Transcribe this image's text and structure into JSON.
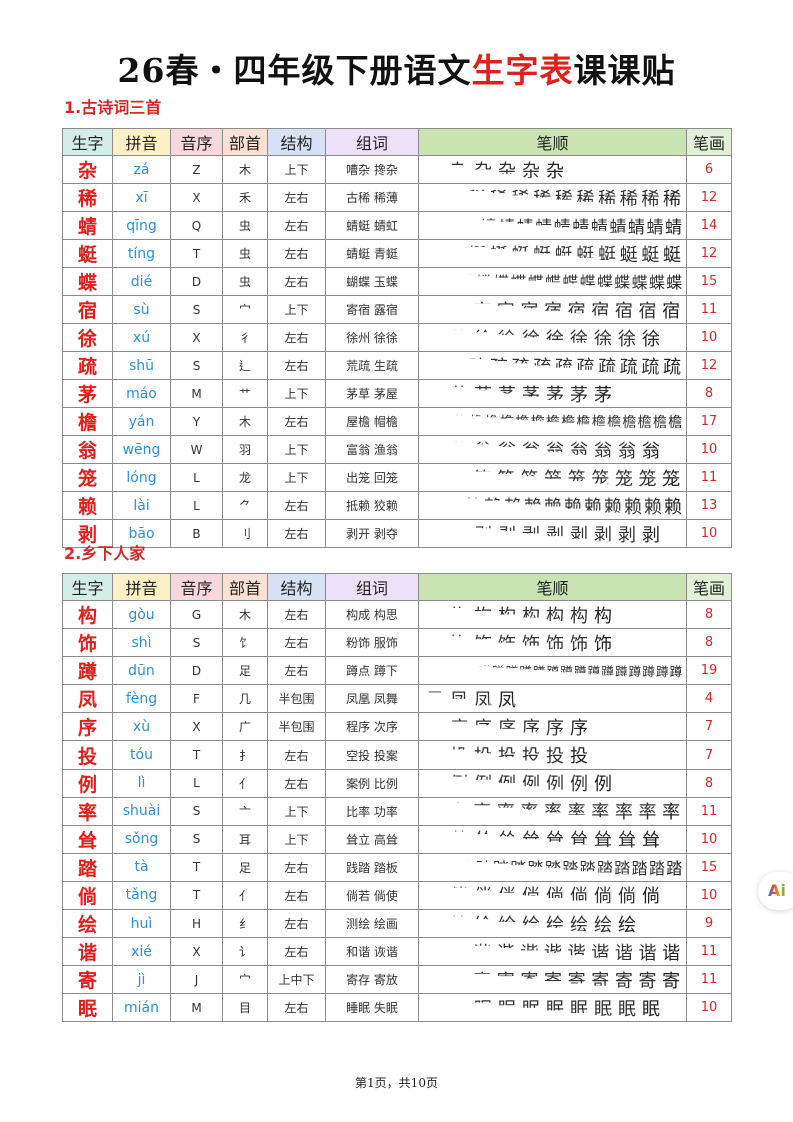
{
  "title": {
    "part1": "26春・四年级下册语文",
    "part2": "生字表",
    "part3": "课课贴"
  },
  "headers": [
    "生字",
    "拼音",
    "音序",
    "部首",
    "结构",
    "组词",
    "笔顺",
    "笔画"
  ],
  "header_colors": [
    "#d3eee8",
    "#fdf0c6",
    "#f9d7df",
    "#fbe1d4",
    "#d7e1f6",
    "#ede1f8",
    "#c9e3b3",
    "#e1f0d6"
  ],
  "accent_red": "#e0201b",
  "pinyin_blue": "#2f8fdc",
  "sections": [
    {
      "label": "1.古诗词三首",
      "rows": [
        {
          "char": "杂",
          "pinyin": "zá",
          "initial": "Z",
          "radical": "木",
          "structure": "上下",
          "words": "嘈杂  搀杂",
          "strokes": 6
        },
        {
          "char": "稀",
          "pinyin": "xī",
          "initial": "X",
          "radical": "禾",
          "structure": "左右",
          "words": "古稀  稀薄",
          "strokes": 12
        },
        {
          "char": "蜻",
          "pinyin": "qīng",
          "initial": "Q",
          "radical": "虫",
          "structure": "左右",
          "words": "蜻蜓  蜻虹",
          "strokes": 14
        },
        {
          "char": "蜓",
          "pinyin": "tíng",
          "initial": "T",
          "radical": "虫",
          "structure": "左右",
          "words": "蜻蜓  青蜓",
          "strokes": 12
        },
        {
          "char": "蝶",
          "pinyin": "dié",
          "initial": "D",
          "radical": "虫",
          "structure": "左右",
          "words": "蝴蝶  玉蝶",
          "strokes": 15
        },
        {
          "char": "宿",
          "pinyin": "sù",
          "initial": "S",
          "radical": "宀",
          "structure": "上下",
          "words": "寄宿  露宿",
          "strokes": 11
        },
        {
          "char": "徐",
          "pinyin": "xú",
          "initial": "X",
          "radical": "彳",
          "structure": "左右",
          "words": "徐州  徐徐",
          "strokes": 10
        },
        {
          "char": "疏",
          "pinyin": "shū",
          "initial": "S",
          "radical": "⻎",
          "structure": "左右",
          "words": "荒疏  生疏",
          "strokes": 12
        },
        {
          "char": "茅",
          "pinyin": "máo",
          "initial": "M",
          "radical": "艹",
          "structure": "上下",
          "words": "茅草  茅屋",
          "strokes": 8
        },
        {
          "char": "檐",
          "pinyin": "yán",
          "initial": "Y",
          "radical": "木",
          "structure": "左右",
          "words": "屋檐  帽檐",
          "strokes": 17
        },
        {
          "char": "翁",
          "pinyin": "wēng",
          "initial": "W",
          "radical": "羽",
          "structure": "上下",
          "words": "富翁  渔翁",
          "strokes": 10
        },
        {
          "char": "笼",
          "pinyin": "lóng",
          "initial": "L",
          "radical": "龙",
          "structure": "上下",
          "words": "出笼  回笼",
          "strokes": 11
        },
        {
          "char": "赖",
          "pinyin": "lài",
          "initial": "L",
          "radical": "⺈",
          "structure": "左右",
          "words": "抵赖  狡赖",
          "strokes": 13
        },
        {
          "char": "剥",
          "pinyin": "bāo",
          "initial": "B",
          "radical": "刂",
          "structure": "左右",
          "words": "剥开  剥夺",
          "strokes": 10
        }
      ]
    },
    {
      "label": "2.乡下人家",
      "rows": [
        {
          "char": "构",
          "pinyin": "gòu",
          "initial": "G",
          "radical": "木",
          "structure": "左右",
          "words": "构成  构思",
          "strokes": 8
        },
        {
          "char": "饰",
          "pinyin": "shì",
          "initial": "S",
          "radical": "饣",
          "structure": "左右",
          "words": "粉饰  服饰",
          "strokes": 8
        },
        {
          "char": "蹲",
          "pinyin": "dūn",
          "initial": "D",
          "radical": "足",
          "structure": "左右",
          "words": "蹲点  蹲下",
          "strokes": 19
        },
        {
          "char": "凤",
          "pinyin": "fèng",
          "initial": "F",
          "radical": "几",
          "structure": "半包围",
          "words": "凤凰  凤舞",
          "strokes": 4
        },
        {
          "char": "序",
          "pinyin": "xù",
          "initial": "X",
          "radical": "广",
          "structure": "半包围",
          "words": "程序  次序",
          "strokes": 7
        },
        {
          "char": "投",
          "pinyin": "tóu",
          "initial": "T",
          "radical": "扌",
          "structure": "左右",
          "words": "空投  投案",
          "strokes": 7
        },
        {
          "char": "例",
          "pinyin": "lì",
          "initial": "L",
          "radical": "亻",
          "structure": "左右",
          "words": "案例  比例",
          "strokes": 8
        },
        {
          "char": "率",
          "pinyin": "shuài",
          "initial": "S",
          "radical": "亠",
          "structure": "上下",
          "words": "比率  功率",
          "strokes": 11
        },
        {
          "char": "耸",
          "pinyin": "sǒng",
          "initial": "S",
          "radical": "耳",
          "structure": "上下",
          "words": "耸立  高耸",
          "strokes": 10
        },
        {
          "char": "踏",
          "pinyin": "tà",
          "initial": "T",
          "radical": "足",
          "structure": "左右",
          "words": "践踏  踏板",
          "strokes": 15
        },
        {
          "char": "倘",
          "pinyin": "tǎng",
          "initial": "T",
          "radical": "亻",
          "structure": "左右",
          "words": "倘若  倘使",
          "strokes": 10
        },
        {
          "char": "绘",
          "pinyin": "huì",
          "initial": "H",
          "radical": "纟",
          "structure": "左右",
          "words": "测绘  绘画",
          "strokes": 9
        },
        {
          "char": "谐",
          "pinyin": "xié",
          "initial": "X",
          "radical": "讠",
          "structure": "左右",
          "words": "和谐  诙谐",
          "strokes": 11
        },
        {
          "char": "寄",
          "pinyin": "jì",
          "initial": "J",
          "radical": "宀",
          "structure": "上中下",
          "words": "寄存  寄放",
          "strokes": 11
        },
        {
          "char": "眠",
          "pinyin": "mián",
          "initial": "M",
          "radical": "目",
          "structure": "左右",
          "words": "睡眠  失眠",
          "strokes": 10
        }
      ]
    }
  ],
  "footer": "第1页，共10页",
  "ai_badge": "Ai"
}
